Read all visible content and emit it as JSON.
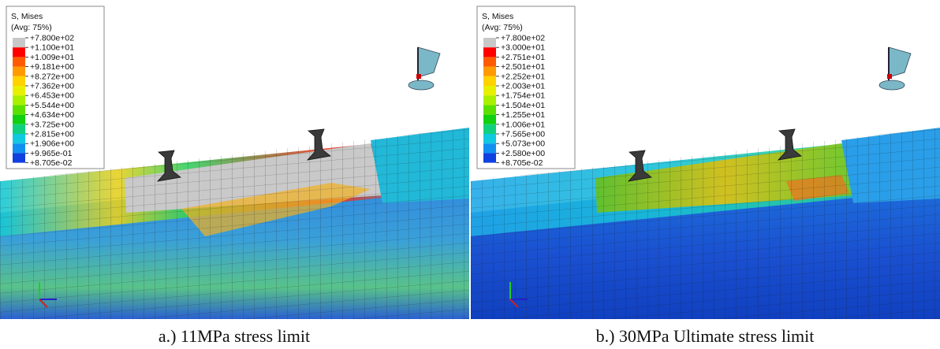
{
  "panels": [
    {
      "legend_title": "S, Mises",
      "legend_subtitle": "(Avg: 75%)",
      "legend_labels": [
        "+7.800e+02",
        "+1.100e+01",
        "+1.009e+01",
        "+9.181e+00",
        "+8.272e+00",
        "+7.362e+00",
        "+6.453e+00",
        "+5.544e+00",
        "+4.634e+00",
        "+3.725e+00",
        "+2.815e+00",
        "+1.906e+00",
        "+9.965e-01",
        "+8.705e-02"
      ],
      "caption": "a.) 11MPa stress limit"
    },
    {
      "legend_title": "S, Mises",
      "legend_subtitle": "(Avg: 75%)",
      "legend_labels": [
        "+7.800e+02",
        "+3.000e+01",
        "+2.751e+01",
        "+2.501e+01",
        "+2.252e+01",
        "+2.003e+01",
        "+1.754e+01",
        "+1.504e+01",
        "+1.255e+01",
        "+1.006e+01",
        "+7.565e+00",
        "+5.073e+00",
        "+2.580e+00",
        "+8.705e-02"
      ],
      "caption": "b.) 30MPa Ultimate stress limit"
    }
  ]
}
